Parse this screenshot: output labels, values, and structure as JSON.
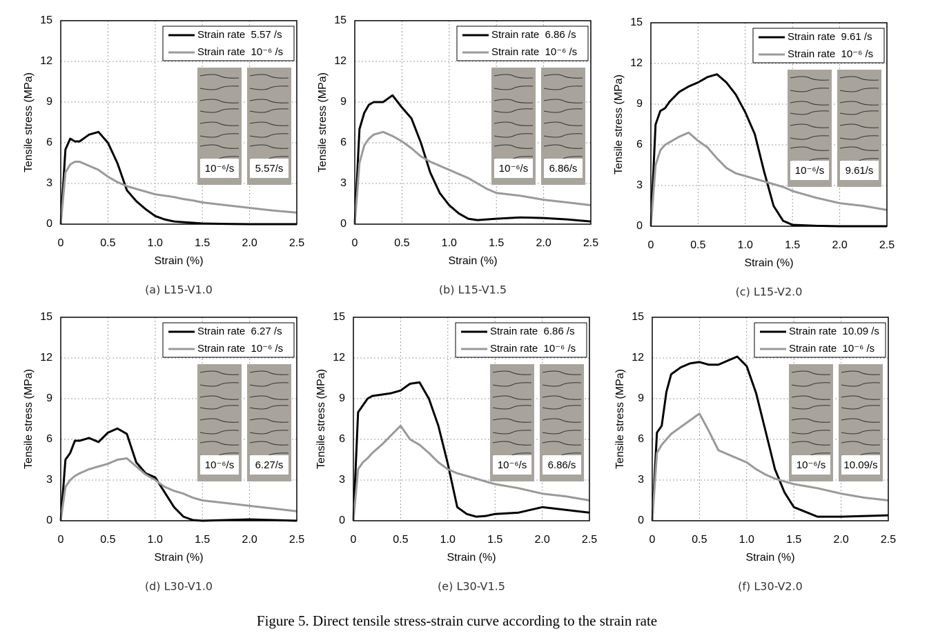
{
  "figure_caption": "Figure 5. Direct tensile stress-strain curve according to the strain rate",
  "chart_data": [
    {
      "type": "line",
      "caption": "(a) L15-V1.0",
      "xlabel": "Strain (%)",
      "ylabel": "Tensile stress (MPa)",
      "xlim": [
        0,
        2.5
      ],
      "ylim": [
        0,
        15
      ],
      "xticks": [
        0,
        0.5,
        {
          "value": 1,
          "label": "1.0"
        },
        1.5,
        {
          "value": 2,
          "label": "2.0"
        },
        2.5
      ],
      "yticks": [
        0,
        3,
        6,
        9,
        12,
        15
      ],
      "grid": true,
      "x": [
        0,
        0.05,
        0.1,
        0.15,
        0.2,
        0.3,
        0.4,
        0.5,
        0.6,
        0.7,
        0.8,
        0.9,
        1.0,
        1.1,
        1.2,
        1.3,
        1.4,
        1.5,
        1.75,
        2.0,
        2.25,
        2.5
      ],
      "series": [
        {
          "name": "Strain rate  5.57 /s",
          "color": "#000000",
          "values": [
            0,
            5.5,
            6.3,
            6.1,
            6.1,
            6.6,
            6.8,
            6.0,
            4.5,
            2.5,
            1.7,
            1.1,
            0.6,
            0.35,
            0.2,
            0.15,
            0.1,
            0.05,
            0.02,
            0,
            0,
            0
          ]
        },
        {
          "name": "Strain rate  10⁻⁶ /s",
          "color": "#999999",
          "values": [
            0,
            3.8,
            4.4,
            4.6,
            4.6,
            4.3,
            4.0,
            3.5,
            3.1,
            2.8,
            2.6,
            2.4,
            2.2,
            2.1,
            2.0,
            1.85,
            1.75,
            1.6,
            1.4,
            1.2,
            1.0,
            0.85
          ]
        }
      ],
      "photo_labels": [
        "10⁻⁶/s",
        "5.57/s"
      ]
    },
    {
      "type": "line",
      "caption": "(b) L15-V1.5",
      "xlabel": "Strain (%)",
      "ylabel": "Tensile stress (MPa)",
      "xlim": [
        0,
        2.5
      ],
      "ylim": [
        0,
        15
      ],
      "xticks": [
        0,
        0.5,
        {
          "value": 1,
          "label": "1.0"
        },
        1.5,
        {
          "value": 2,
          "label": "2.0"
        },
        2.5
      ],
      "yticks": [
        0,
        3,
        6,
        9,
        12,
        15
      ],
      "grid": true,
      "x": [
        0,
        0.05,
        0.1,
        0.15,
        0.2,
        0.3,
        0.4,
        0.5,
        0.6,
        0.7,
        0.8,
        0.9,
        1.0,
        1.1,
        1.2,
        1.3,
        1.4,
        1.5,
        1.75,
        2.0,
        2.25,
        2.5
      ],
      "series": [
        {
          "name": "Strain rate  6.86 /s",
          "color": "#000000",
          "values": [
            0,
            7.0,
            8.2,
            8.8,
            9.0,
            9.0,
            9.5,
            8.6,
            7.8,
            6.0,
            3.8,
            2.3,
            1.4,
            0.8,
            0.4,
            0.3,
            0.35,
            0.4,
            0.5,
            0.45,
            0.35,
            0.2
          ]
        },
        {
          "name": "Strain rate  10⁻⁶ /s",
          "color": "#999999",
          "values": [
            0,
            4.5,
            5.8,
            6.3,
            6.6,
            6.8,
            6.5,
            6.1,
            5.6,
            5.0,
            4.6,
            4.3,
            4.0,
            3.7,
            3.4,
            3.0,
            2.6,
            2.3,
            2.1,
            1.8,
            1.6,
            1.4
          ]
        }
      ],
      "photo_labels": [
        "10⁻⁶/s",
        "6.86/s"
      ]
    },
    {
      "type": "line",
      "caption": "(c) L15-V2.0",
      "xlabel": "Strain (%)",
      "ylabel": "Tensile stress (MPa)",
      "xlim": [
        0,
        2.5
      ],
      "ylim": [
        0,
        15
      ],
      "xticks": [
        0,
        0.5,
        {
          "value": 1,
          "label": "1.0"
        },
        1.5,
        {
          "value": 2,
          "label": "2.0"
        },
        2.5
      ],
      "yticks": [
        0,
        3,
        6,
        9,
        12,
        15
      ],
      "grid": true,
      "x": [
        0,
        0.05,
        0.1,
        0.15,
        0.2,
        0.3,
        0.4,
        0.5,
        0.6,
        0.7,
        0.8,
        0.9,
        1.0,
        1.1,
        1.2,
        1.3,
        1.4,
        1.5,
        1.75,
        2.0,
        2.25,
        2.5
      ],
      "series": [
        {
          "name": "Strain rate  9.61 /s",
          "color": "#000000",
          "values": [
            0,
            7.5,
            8.5,
            8.7,
            9.2,
            9.9,
            10.3,
            10.6,
            11.0,
            11.2,
            10.6,
            9.7,
            8.4,
            6.8,
            4.0,
            1.5,
            0.4,
            0.1,
            0.03,
            0,
            0,
            0
          ]
        },
        {
          "name": "Strain rate  10⁻⁶ /s",
          "color": "#999999",
          "values": [
            0,
            4.5,
            5.6,
            6.0,
            6.2,
            6.6,
            6.9,
            6.3,
            5.8,
            5.0,
            4.3,
            3.9,
            3.7,
            3.5,
            3.3,
            3.1,
            2.9,
            2.6,
            2.1,
            1.7,
            1.5,
            1.2
          ]
        }
      ],
      "photo_labels": [
        "10⁻⁶/s",
        "9.61/s"
      ]
    },
    {
      "type": "line",
      "caption": "(d) L30-V1.0",
      "xlabel": "Strain (%)",
      "ylabel": "Tensile stress (MPa)",
      "xlim": [
        0,
        2.5
      ],
      "ylim": [
        0,
        15
      ],
      "xticks": [
        0,
        0.5,
        {
          "value": 1,
          "label": "1.0"
        },
        1.5,
        {
          "value": 2,
          "label": "2.0"
        },
        2.5
      ],
      "yticks": [
        0,
        3,
        6,
        9,
        12,
        15
      ],
      "grid": true,
      "x": [
        0,
        0.05,
        0.1,
        0.15,
        0.2,
        0.3,
        0.4,
        0.5,
        0.6,
        0.7,
        0.8,
        0.9,
        1.0,
        1.1,
        1.2,
        1.3,
        1.4,
        1.5,
        1.75,
        2.0,
        2.25,
        2.5
      ],
      "series": [
        {
          "name": "Strain rate  6.27 /s",
          "color": "#000000",
          "values": [
            0,
            4.5,
            5.0,
            5.9,
            5.9,
            6.1,
            5.8,
            6.5,
            6.8,
            6.4,
            4.3,
            3.5,
            3.2,
            2.1,
            1.0,
            0.3,
            0.05,
            0,
            0.05,
            0.1,
            0.05,
            0
          ]
        },
        {
          "name": "Strain rate  10⁻⁶ /s",
          "color": "#999999",
          "values": [
            0,
            2.5,
            3.0,
            3.3,
            3.5,
            3.8,
            4.0,
            4.2,
            4.5,
            4.6,
            4.0,
            3.4,
            3.0,
            2.5,
            2.2,
            2.0,
            1.7,
            1.5,
            1.3,
            1.1,
            0.9,
            0.7
          ]
        }
      ],
      "photo_labels": [
        "10⁻⁶/s",
        "6.27/s"
      ]
    },
    {
      "type": "line",
      "caption": "(e) L30-V1.5",
      "xlabel": "Strain (%)",
      "ylabel": "Tensile stress (MPa)",
      "xlim": [
        0,
        2.5
      ],
      "ylim": [
        0,
        15
      ],
      "xticks": [
        0,
        0.5,
        {
          "value": 1,
          "label": "1.0"
        },
        1.5,
        {
          "value": 2,
          "label": "2.0"
        },
        2.5
      ],
      "yticks": [
        0,
        3,
        6,
        9,
        12,
        15
      ],
      "grid": true,
      "x": [
        0,
        0.05,
        0.1,
        0.15,
        0.2,
        0.3,
        0.4,
        0.5,
        0.6,
        0.7,
        0.8,
        0.9,
        1.0,
        1.1,
        1.2,
        1.3,
        1.4,
        1.5,
        1.75,
        2.0,
        2.25,
        2.5
      ],
      "series": [
        {
          "name": "Strain rate  6.86 /s",
          "color": "#000000",
          "values": [
            0,
            8.0,
            8.5,
            9.0,
            9.2,
            9.3,
            9.4,
            9.6,
            10.1,
            10.2,
            9.0,
            7.0,
            4.2,
            1.0,
            0.5,
            0.3,
            0.35,
            0.5,
            0.6,
            1.0,
            0.8,
            0.6
          ]
        },
        {
          "name": "Strain rate  10⁻⁶ /s",
          "color": "#999999",
          "values": [
            0,
            3.8,
            4.3,
            4.6,
            5.0,
            5.6,
            6.3,
            7.0,
            6.0,
            5.6,
            5.0,
            4.3,
            3.8,
            3.5,
            3.3,
            3.1,
            2.9,
            2.7,
            2.4,
            2.0,
            1.8,
            1.5
          ]
        }
      ],
      "photo_labels": [
        "10⁻⁶/s",
        "6.86/s"
      ]
    },
    {
      "type": "line",
      "caption": "(f) L30-V2.0",
      "xlabel": "Strain (%)",
      "ylabel": "Tensile stress (MPa)",
      "xlim": [
        0,
        2.5
      ],
      "ylim": [
        0,
        15
      ],
      "xticks": [
        0,
        0.5,
        {
          "value": 1,
          "label": "1.0"
        },
        1.5,
        {
          "value": 2,
          "label": "2.0"
        },
        2.5
      ],
      "yticks": [
        0,
        3,
        6,
        9,
        12,
        15
      ],
      "grid": true,
      "x": [
        0,
        0.05,
        0.1,
        0.15,
        0.2,
        0.3,
        0.4,
        0.5,
        0.6,
        0.7,
        0.8,
        0.9,
        1.0,
        1.1,
        1.2,
        1.3,
        1.4,
        1.5,
        1.75,
        2.0,
        2.25,
        2.5
      ],
      "series": [
        {
          "name": "Strain rate  10.09 /s",
          "color": "#000000",
          "values": [
            0,
            6.5,
            7.0,
            9.5,
            10.8,
            11.3,
            11.6,
            11.7,
            11.5,
            11.5,
            11.8,
            12.1,
            11.4,
            9.4,
            6.6,
            3.8,
            2.1,
            1.0,
            0.3,
            0.3,
            0.35,
            0.4
          ]
        },
        {
          "name": "Strain rate  10⁻⁶ /s",
          "color": "#999999",
          "values": [
            0,
            5.0,
            5.6,
            6.0,
            6.4,
            6.9,
            7.4,
            7.9,
            6.6,
            5.2,
            4.9,
            4.6,
            4.3,
            3.8,
            3.4,
            3.1,
            2.9,
            2.7,
            2.4,
            2.0,
            1.7,
            1.5
          ]
        }
      ],
      "photo_labels": [
        "10⁻⁶/s",
        "10.09/s"
      ]
    }
  ]
}
